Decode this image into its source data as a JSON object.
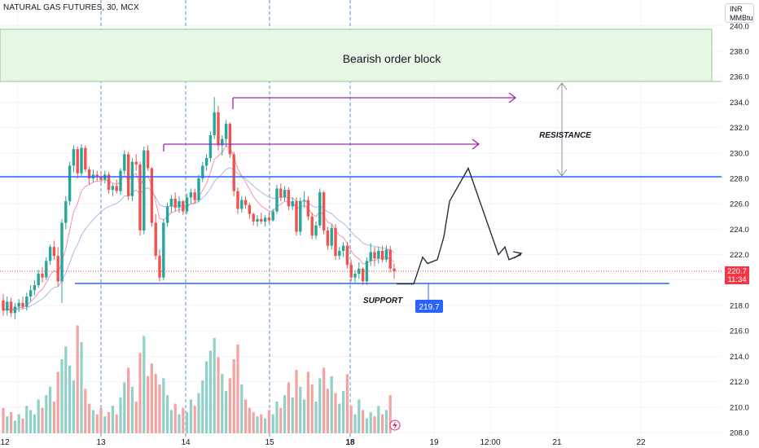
{
  "header": {
    "symbol": "NATURAL GAS FUTURES, 30, MCX",
    "unit_line1": "INR",
    "unit_line2": "MMBtu"
  },
  "annotations": {
    "zone_label": "Bearish order block",
    "resistance_label": "RESISTANCE",
    "support_label": "SUPPORT",
    "support_level": "219.7",
    "last_price": "220.7",
    "countdown": "11:34"
  },
  "colors": {
    "up": "#26a69a",
    "down": "#ef5350",
    "vol_up": "#8fd0c8",
    "vol_down": "#f4a3a1",
    "level": "#2962ff",
    "zone_fill": "#e8f6e6",
    "zone_border": "#8ccf85",
    "target_arrow": "#9c27b0",
    "projection": "#2a2e39",
    "session_line": "#5b8fd9",
    "ma_fast": "#f48fb1",
    "ma_slow": "#b0b6e8",
    "price_tag": "#f23645"
  },
  "chart_data": {
    "type": "candlestick",
    "title": "NATURAL GAS FUTURES, 30, MCX",
    "y_unit": "INR / MMBtu",
    "ylim": [
      208,
      241
    ],
    "y_ticks": [
      "240.0",
      "238.0",
      "236.0",
      "234.0",
      "232.0",
      "230.0",
      "228.0",
      "226.0",
      "224.0",
      "222.0",
      "220.0",
      "218.0",
      "216.0",
      "214.0",
      "212.0",
      "210.0",
      "208.0"
    ],
    "x_ticks": [
      "12",
      "13",
      "14",
      "15",
      "18",
      "19",
      "12:00",
      "21",
      "22"
    ],
    "grid": true,
    "last_price": 220.7,
    "support": 219.7,
    "resistance": 228.0,
    "bearish_order_block": [
      235.7,
      239.6
    ],
    "target_levels": [
      234.3,
      230.6
    ],
    "candles": [
      [
        218.4,
        218.9,
        217.2,
        217.6
      ],
      [
        217.6,
        218.7,
        217.2,
        218.3
      ],
      [
        218.3,
        218.6,
        217.1,
        217.4
      ],
      [
        217.4,
        218.2,
        216.9,
        217.9
      ],
      [
        217.9,
        218.5,
        217.5,
        218.2
      ],
      [
        218.2,
        218.7,
        217.7,
        217.9
      ],
      [
        217.9,
        219.0,
        217.6,
        218.7
      ],
      [
        218.7,
        219.6,
        218.3,
        219.2
      ],
      [
        219.2,
        220.0,
        218.8,
        219.6
      ],
      [
        219.6,
        220.8,
        219.4,
        220.5
      ],
      [
        220.5,
        221.0,
        219.8,
        220.2
      ],
      [
        220.2,
        221.8,
        220.0,
        221.5
      ],
      [
        221.5,
        222.8,
        221.2,
        222.6
      ],
      [
        222.6,
        223.1,
        221.6,
        221.9
      ],
      [
        221.9,
        222.6,
        219.5,
        219.9
      ],
      [
        219.9,
        224.8,
        218.2,
        224.5
      ],
      [
        224.5,
        226.6,
        224.0,
        226.2
      ],
      [
        226.2,
        229.3,
        225.9,
        229.0
      ],
      [
        229.0,
        230.6,
        228.5,
        230.3
      ],
      [
        230.3,
        230.5,
        228.0,
        228.4
      ],
      [
        228.4,
        230.7,
        228.2,
        230.4
      ],
      [
        230.4,
        230.6,
        228.5,
        228.7
      ],
      [
        228.7,
        228.9,
        227.5,
        228.0
      ],
      [
        228.0,
        228.7,
        227.7,
        228.3
      ],
      [
        228.3,
        228.6,
        227.8,
        228.1
      ],
      [
        228.1,
        228.5,
        227.6,
        227.9
      ],
      [
        227.9,
        228.6,
        227.6,
        228.3
      ],
      [
        228.3,
        228.5,
        226.8,
        227.1
      ],
      [
        227.1,
        227.6,
        226.6,
        227.4
      ],
      [
        227.4,
        227.9,
        226.8,
        227.0
      ],
      [
        227.0,
        228.8,
        226.7,
        228.6
      ],
      [
        228.6,
        230.2,
        228.3,
        229.9
      ],
      [
        229.9,
        230.1,
        226.3,
        226.6
      ],
      [
        226.6,
        229.6,
        226.2,
        229.3
      ],
      [
        229.3,
        229.9,
        228.6,
        229.1
      ],
      [
        229.1,
        229.3,
        223.5,
        223.9
      ],
      [
        223.9,
        230.5,
        223.6,
        230.2
      ],
      [
        230.2,
        230.6,
        228.6,
        228.8
      ],
      [
        228.8,
        228.9,
        224.2,
        224.5
      ],
      [
        224.5,
        225.2,
        221.6,
        221.9
      ],
      [
        221.9,
        222.4,
        219.9,
        220.2
      ],
      [
        220.2,
        224.8,
        220.0,
        224.5
      ],
      [
        224.5,
        226.1,
        224.2,
        225.8
      ],
      [
        225.8,
        226.7,
        225.3,
        226.4
      ],
      [
        226.4,
        226.9,
        225.4,
        225.7
      ],
      [
        225.7,
        226.6,
        225.3,
        226.2
      ],
      [
        226.2,
        226.3,
        225.1,
        225.4
      ],
      [
        225.4,
        226.8,
        225.2,
        226.5
      ],
      [
        226.5,
        227.2,
        226.0,
        226.9
      ],
      [
        226.9,
        227.2,
        226.0,
        226.3
      ],
      [
        226.3,
        228.3,
        226.1,
        228.0
      ],
      [
        228.0,
        229.3,
        227.7,
        229.0
      ],
      [
        229.0,
        229.9,
        228.6,
        229.6
      ],
      [
        229.6,
        231.7,
        229.3,
        231.4
      ],
      [
        231.4,
        234.4,
        231.1,
        233.2
      ],
      [
        233.2,
        233.7,
        230.2,
        230.6
      ],
      [
        230.6,
        231.4,
        229.8,
        231.1
      ],
      [
        231.1,
        232.6,
        230.5,
        232.3
      ],
      [
        232.3,
        232.4,
        229.6,
        229.9
      ],
      [
        229.9,
        230.1,
        226.6,
        227.0
      ],
      [
        227.0,
        227.3,
        225.2,
        225.6
      ],
      [
        225.6,
        226.6,
        225.3,
        226.3
      ],
      [
        226.3,
        226.6,
        225.6,
        225.9
      ],
      [
        225.9,
        226.1,
        224.8,
        225.2
      ],
      [
        225.2,
        225.3,
        224.3,
        224.6
      ],
      [
        224.6,
        225.1,
        224.2,
        224.8
      ],
      [
        224.8,
        225.3,
        224.4,
        224.6
      ],
      [
        224.6,
        225.1,
        224.2,
        224.9
      ],
      [
        224.9,
        225.3,
        224.5,
        224.7
      ],
      [
        224.7,
        225.6,
        224.6,
        225.4
      ],
      [
        225.4,
        227.5,
        225.2,
        227.2
      ],
      [
        227.2,
        227.6,
        226.2,
        226.5
      ],
      [
        226.5,
        227.4,
        226.2,
        227.1
      ],
      [
        227.1,
        227.3,
        225.5,
        225.8
      ],
      [
        225.8,
        226.5,
        225.5,
        226.2
      ],
      [
        226.2,
        226.5,
        223.5,
        223.8
      ],
      [
        223.8,
        226.5,
        223.5,
        226.2
      ],
      [
        226.2,
        227.0,
        225.7,
        226.3
      ],
      [
        226.3,
        226.6,
        224.7,
        225.0
      ],
      [
        225.0,
        225.3,
        223.2,
        223.5
      ],
      [
        223.5,
        224.6,
        223.2,
        224.3
      ],
      [
        224.3,
        227.2,
        224.1,
        226.9
      ],
      [
        226.9,
        227.0,
        223.6,
        223.9
      ],
      [
        223.9,
        224.2,
        222.4,
        222.7
      ],
      [
        222.7,
        224.4,
        222.4,
        224.1
      ],
      [
        224.1,
        224.4,
        221.6,
        221.9
      ],
      [
        221.9,
        222.6,
        221.6,
        222.3
      ],
      [
        222.3,
        223.0,
        221.8,
        222.7
      ],
      [
        222.7,
        223.0,
        220.9,
        221.2
      ],
      [
        221.2,
        221.6,
        219.9,
        220.2
      ],
      [
        220.2,
        220.8,
        219.8,
        220.5
      ],
      [
        220.5,
        221.4,
        220.1,
        220.9
      ],
      [
        220.9,
        221.0,
        219.6,
        219.9
      ],
      [
        219.9,
        221.8,
        219.6,
        221.5
      ],
      [
        221.5,
        222.9,
        221.1,
        222.2
      ],
      [
        222.2,
        222.6,
        221.1,
        221.7
      ],
      [
        221.7,
        222.6,
        221.3,
        222.3
      ],
      [
        222.3,
        222.7,
        221.4,
        221.6
      ],
      [
        221.6,
        222.7,
        221.4,
        222.4
      ],
      [
        222.4,
        222.7,
        220.6,
        220.9
      ],
      [
        220.9,
        221.3,
        220.1,
        220.7
      ]
    ],
    "volume": [
      1.2,
      0.8,
      1.0,
      0.6,
      0.9,
      0.7,
      1.3,
      1.1,
      0.9,
      1.6,
      1.2,
      1.8,
      2.2,
      1.5,
      2.9,
      3.5,
      4.1,
      3.2,
      2.5,
      5.1,
      4.3,
      2.1,
      1.4,
      1.1,
      0.9,
      1.2,
      0.8,
      1.0,
      1.3,
      0.9,
      1.7,
      2.4,
      3.1,
      2.2,
      1.5,
      3.8,
      4.6,
      2.7,
      3.3,
      2.8,
      2.3,
      2.6,
      1.8,
      1.1,
      1.4,
      0.9,
      1.2,
      1.0,
      1.6,
      1.3,
      1.9,
      2.5,
      3.4,
      3.9,
      4.5,
      3.6,
      2.8,
      2.0,
      2.6,
      3.5,
      4.2,
      2.3,
      1.6,
      1.2,
      1.0,
      0.8,
      0.9,
      0.7,
      1.1,
      0.9,
      1.5,
      1.2,
      1.8,
      2.4,
      1.7,
      3.0,
      2.2,
      1.6,
      2.9,
      2.3,
      1.5,
      2.6,
      3.1,
      2.1,
      2.7,
      1.9,
      1.4,
      2.0,
      2.8,
      1.3,
      0.9,
      1.6,
      1.1,
      0.7,
      1.0,
      0.8,
      1.3,
      0.9,
      1.1,
      1.8
    ],
    "moving_averages": [
      "fast",
      "slow"
    ],
    "projection_path": [
      [
        220.0,
        219.7
      ],
      [
        221.3,
        220.5
      ],
      [
        221.8,
        220.9
      ],
      [
        223.8,
        223.0
      ],
      [
        228.8,
        226.8
      ],
      [
        222.7,
        221.6
      ],
      [
        222.2,
        221.9
      ]
    ]
  }
}
